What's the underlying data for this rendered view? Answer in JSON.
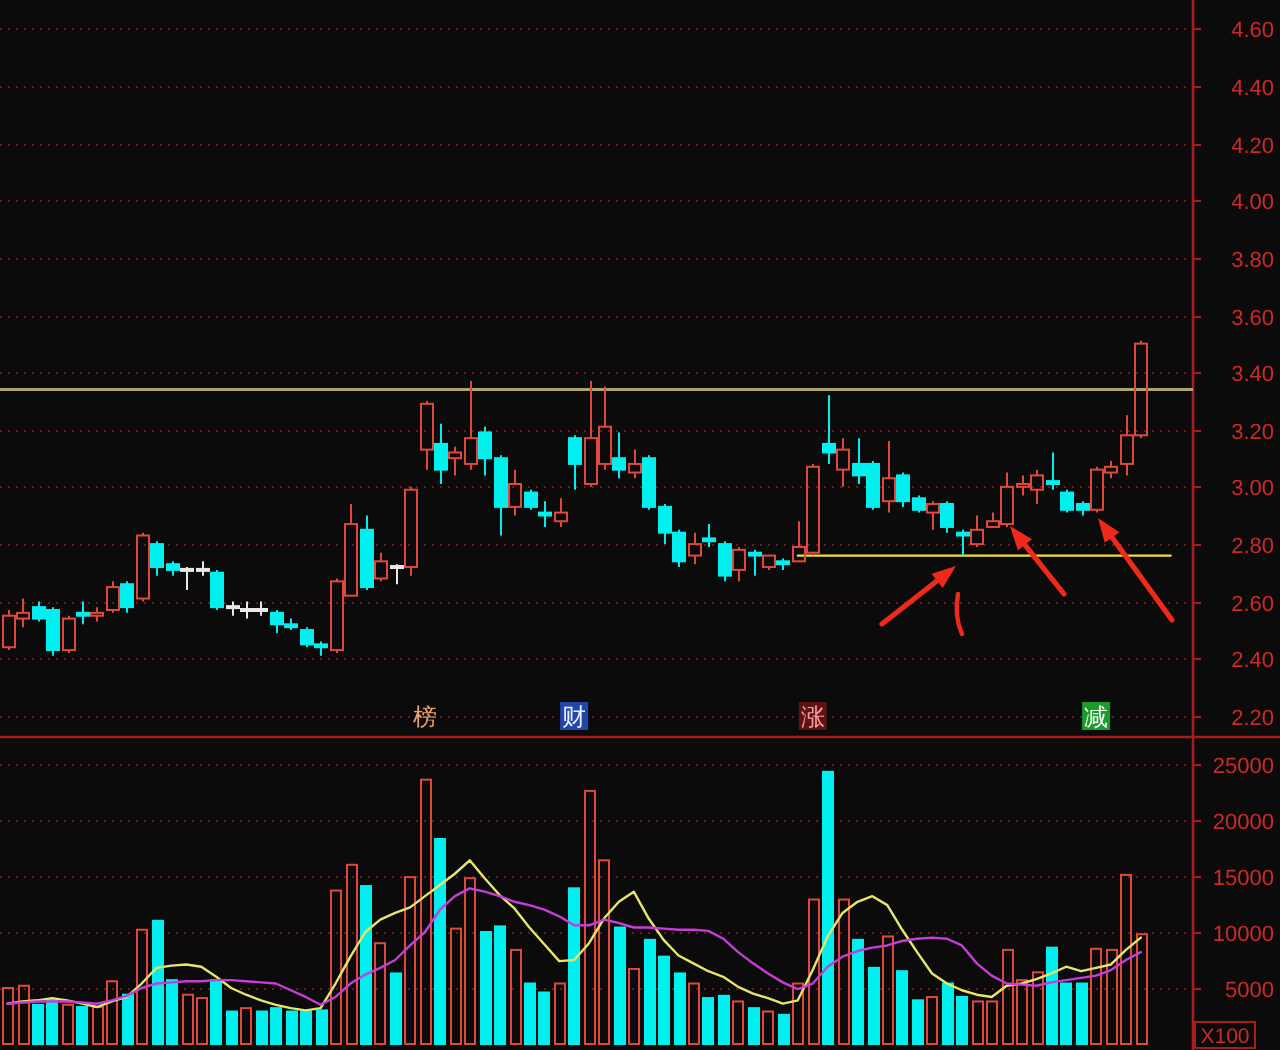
{
  "chart_data": [
    {
      "type": "candlestick",
      "categories": [
        null,
        null,
        null,
        null,
        null,
        null,
        null,
        null,
        null,
        null,
        null,
        null,
        null,
        null,
        null,
        null,
        null,
        null,
        null,
        null,
        null,
        null,
        null,
        null,
        null,
        null,
        null,
        null,
        null,
        null,
        null,
        null,
        null,
        null,
        null,
        null,
        null,
        null,
        null,
        null,
        null,
        null,
        null,
        null,
        null,
        null,
        null,
        null,
        null,
        null,
        null,
        null,
        null,
        null,
        null,
        null,
        null,
        null,
        null,
        null,
        null,
        null,
        null,
        null,
        null,
        null,
        null,
        null,
        null,
        null,
        null,
        null,
        null,
        null,
        null,
        null,
        null,
        null,
        null,
        null
      ],
      "ohlc": [
        [
          2.44,
          2.57,
          2.43,
          2.55
        ],
        [
          2.54,
          2.61,
          2.51,
          2.56
        ],
        [
          2.58,
          2.6,
          2.53,
          2.54
        ],
        [
          2.57,
          2.58,
          2.41,
          2.43
        ],
        [
          2.43,
          2.55,
          2.42,
          2.54
        ],
        [
          2.56,
          2.6,
          2.52,
          2.55
        ],
        [
          2.55,
          2.58,
          2.53,
          2.56
        ],
        [
          2.57,
          2.67,
          2.56,
          2.65
        ],
        [
          2.66,
          2.67,
          2.56,
          2.58
        ],
        [
          2.61,
          2.84,
          2.6,
          2.83
        ],
        [
          2.8,
          2.81,
          2.69,
          2.72
        ],
        [
          2.73,
          2.74,
          2.69,
          2.71
        ],
        [
          2.71,
          2.72,
          2.64,
          2.71
        ],
        [
          2.71,
          2.74,
          2.69,
          2.71
        ],
        [
          2.7,
          2.71,
          2.57,
          2.58
        ],
        [
          2.58,
          2.6,
          2.55,
          2.58
        ],
        [
          2.57,
          2.6,
          2.54,
          2.57
        ],
        [
          2.57,
          2.6,
          2.55,
          2.57
        ],
        [
          2.56,
          2.57,
          2.49,
          2.52
        ],
        [
          2.52,
          2.54,
          2.5,
          2.51
        ],
        [
          2.5,
          2.51,
          2.44,
          2.45
        ],
        [
          2.45,
          2.46,
          2.41,
          2.44
        ],
        [
          2.43,
          2.68,
          2.42,
          2.67
        ],
        [
          2.62,
          2.94,
          2.62,
          2.87
        ],
        [
          2.85,
          2.9,
          2.64,
          2.65
        ],
        [
          2.68,
          2.77,
          2.67,
          2.74
        ],
        [
          2.72,
          2.73,
          2.66,
          2.72
        ],
        [
          2.72,
          3.0,
          2.69,
          2.99
        ],
        [
          3.13,
          3.3,
          3.06,
          3.29
        ],
        [
          3.15,
          3.22,
          3.01,
          3.06
        ],
        [
          3.1,
          3.14,
          3.04,
          3.12
        ],
        [
          3.08,
          3.37,
          3.06,
          3.17
        ],
        [
          3.19,
          3.21,
          3.04,
          3.1
        ],
        [
          3.1,
          3.11,
          2.83,
          2.93
        ],
        [
          2.93,
          3.06,
          2.9,
          3.01
        ],
        [
          2.98,
          2.99,
          2.92,
          2.93
        ],
        [
          2.91,
          2.95,
          2.86,
          2.9
        ],
        [
          2.88,
          2.96,
          2.86,
          2.91
        ],
        [
          3.17,
          3.18,
          2.99,
          3.08
        ],
        [
          3.01,
          3.37,
          3.0,
          3.17
        ],
        [
          3.08,
          3.35,
          3.06,
          3.21
        ],
        [
          3.1,
          3.19,
          3.03,
          3.06
        ],
        [
          3.05,
          3.13,
          3.03,
          3.08
        ],
        [
          3.1,
          3.11,
          2.92,
          2.93
        ],
        [
          2.93,
          2.94,
          2.8,
          2.84
        ],
        [
          2.84,
          2.85,
          2.72,
          2.74
        ],
        [
          2.76,
          2.84,
          2.73,
          2.8
        ],
        [
          2.82,
          2.87,
          2.79,
          2.81
        ],
        [
          2.8,
          2.81,
          2.67,
          2.69
        ],
        [
          2.71,
          2.79,
          2.67,
          2.78
        ],
        [
          2.77,
          2.78,
          2.69,
          2.76
        ],
        [
          2.72,
          2.76,
          2.71,
          2.76
        ],
        [
          2.74,
          2.75,
          2.71,
          2.73
        ],
        [
          2.74,
          2.88,
          2.74,
          2.79
        ],
        [
          2.77,
          3.08,
          2.76,
          3.07
        ],
        [
          3.15,
          3.32,
          3.08,
          3.12
        ],
        [
          3.06,
          3.17,
          3.0,
          3.13
        ],
        [
          3.08,
          3.17,
          3.01,
          3.04
        ],
        [
          3.08,
          3.09,
          2.92,
          2.93
        ],
        [
          2.95,
          3.16,
          2.91,
          3.03
        ],
        [
          3.04,
          3.05,
          2.93,
          2.95
        ],
        [
          2.96,
          2.97,
          2.91,
          2.92
        ],
        [
          2.91,
          2.95,
          2.85,
          2.94
        ],
        [
          2.94,
          2.95,
          2.84,
          2.86
        ],
        [
          2.84,
          2.85,
          2.76,
          2.83
        ],
        [
          2.8,
          2.9,
          2.79,
          2.85
        ],
        [
          2.86,
          2.91,
          2.86,
          2.88
        ],
        [
          2.87,
          3.05,
          2.86,
          3.0
        ],
        [
          3.0,
          3.04,
          2.97,
          3.01
        ],
        [
          2.99,
          3.06,
          2.94,
          3.04
        ],
        [
          3.02,
          3.12,
          2.99,
          3.01
        ],
        [
          2.98,
          2.99,
          2.91,
          2.92
        ],
        [
          2.94,
          2.95,
          2.9,
          2.92
        ],
        [
          2.92,
          3.07,
          2.91,
          3.06
        ],
        [
          3.05,
          3.09,
          3.03,
          3.07
        ],
        [
          3.08,
          3.25,
          3.04,
          3.18
        ],
        [
          3.18,
          3.51,
          3.17,
          3.5
        ],
        null,
        null,
        null
      ],
      "colors": [
        "#e0483c",
        "#e0483c",
        "#00f0f0",
        "#00f0f0",
        "#e0483c",
        "#00f0f0",
        "#e0483c",
        "#e0483c",
        "#00f0f0",
        "#e0483c",
        "#00f0f0",
        "#00f0f0",
        "#e8e8e8",
        "#e8e8e8",
        "#00f0f0",
        "#e8e8e8",
        "#e8e8e8",
        "#e8e8e8",
        "#00f0f0",
        "#00f0f0",
        "#00f0f0",
        "#00f0f0",
        "#e0483c",
        "#e0483c",
        "#00f0f0",
        "#e0483c",
        "#e8e8e8",
        "#e0483c",
        "#e0483c",
        "#00f0f0",
        "#e0483c",
        "#e0483c",
        "#00f0f0",
        "#00f0f0",
        "#e0483c",
        "#00f0f0",
        "#00f0f0",
        "#e0483c",
        "#00f0f0",
        "#e0483c",
        "#e0483c",
        "#00f0f0",
        "#e0483c",
        "#00f0f0",
        "#00f0f0",
        "#00f0f0",
        "#e0483c",
        "#00f0f0",
        "#00f0f0",
        "#e0483c",
        "#00f0f0",
        "#e0483c",
        "#00f0f0",
        "#e0483c",
        "#e0483c",
        "#00f0f0",
        "#e0483c",
        "#00f0f0",
        "#00f0f0",
        "#e0483c",
        "#00f0f0",
        "#00f0f0",
        "#e0483c",
        "#00f0f0",
        "#00f0f0",
        "#e0483c",
        "#e0483c",
        "#e0483c",
        "#e0483c",
        "#e0483c",
        "#00f0f0",
        "#00f0f0",
        "#00f0f0",
        "#e0483c",
        "#e0483c",
        "#e0483c",
        "#e0483c",
        null,
        null,
        null
      ],
      "series": [
        {
          "type": "line",
          "color": "#ece03c",
          "values": [
            null,
            null,
            null,
            null,
            null,
            null,
            null,
            null,
            null,
            null,
            null,
            null,
            null,
            null,
            null,
            null,
            null,
            null,
            null,
            null,
            null,
            null,
            null,
            null,
            null,
            null,
            null,
            null,
            null,
            null,
            null,
            null,
            null,
            null,
            null,
            null,
            null,
            null,
            null,
            null,
            null,
            null,
            null,
            null,
            null,
            null,
            null,
            null,
            null,
            null,
            null,
            null,
            null,
            2.76,
            2.76,
            2.76,
            2.76,
            2.76,
            2.76,
            2.76,
            2.76,
            2.76,
            2.76,
            2.76,
            2.76,
            2.76,
            2.76,
            2.76,
            2.76,
            2.76,
            2.76,
            2.76,
            2.76,
            2.76,
            2.76,
            2.76,
            2.76,
            2.76,
            2.76,
            null
          ]
        }
      ],
      "ylim": [
        2.13,
        4.7
      ],
      "yticks": [
        {
          "value": 2.2,
          "label": "2.20"
        },
        {
          "value": 2.4,
          "label": "2.40"
        },
        {
          "value": 2.6,
          "label": "2.60"
        },
        {
          "value": 2.8,
          "label": "2.80"
        },
        {
          "value": 3,
          "label": "3.00"
        },
        {
          "value": 3.2,
          "label": "3.20"
        },
        {
          "value": 3.4,
          "label": "3.40"
        },
        {
          "value": 3.6,
          "label": "3.60"
        },
        {
          "value": 3.8,
          "label": "3.80"
        },
        {
          "value": 4,
          "label": "4.00"
        },
        {
          "value": 4.2,
          "label": "4.20"
        },
        {
          "value": 4.4,
          "label": "4.40"
        },
        {
          "value": 4.6,
          "label": "4.60"
        }
      ],
      "grid": "y",
      "ref_lines": [
        {
          "axis": "y",
          "value": 3.34,
          "color": "#aca46c"
        }
      ],
      "annotations": [
        "榜",
        "财",
        "涨",
        "减"
      ]
    },
    {
      "type": "bar",
      "categories": [
        null,
        null,
        null,
        null,
        null,
        null,
        null,
        null,
        null,
        null,
        null,
        null,
        null,
        null,
        null,
        null,
        null,
        null,
        null,
        null,
        null,
        null,
        null,
        null,
        null,
        null,
        null,
        null,
        null,
        null,
        null,
        null,
        null,
        null,
        null,
        null,
        null,
        null,
        null,
        null,
        null,
        null,
        null,
        null,
        null,
        null,
        null,
        null,
        null,
        null,
        null,
        null,
        null,
        null,
        null,
        null,
        null,
        null,
        null,
        null,
        null,
        null,
        null,
        null,
        null,
        null,
        null,
        null,
        null,
        null,
        null,
        null,
        null,
        null,
        null,
        null,
        null,
        null,
        null,
        null
      ],
      "series": [
        {
          "values": [
            5000,
            5200,
            3500,
            3900,
            3500,
            3300,
            3300,
            5600,
            4400,
            10200,
            11000,
            5700,
            4400,
            4100,
            5700,
            2900,
            3200,
            2900,
            3200,
            2900,
            2900,
            3000,
            13700,
            16000,
            14100,
            9000,
            6300,
            14900,
            23600,
            18300,
            10300,
            14800,
            10000,
            10500,
            8400,
            5400,
            4600,
            5400,
            13900,
            22600,
            16400,
            10400,
            6700,
            9300,
            7800,
            6300,
            5400,
            4100,
            4300,
            3800,
            3200,
            2900,
            2600,
            5400,
            12900,
            24300,
            12900,
            9300,
            6800,
            9600,
            6500,
            3900,
            4200,
            5400,
            4200,
            3800,
            3800,
            8400,
            5700,
            6400,
            8600,
            5400,
            5400,
            8500,
            8400,
            15100,
            9800,
            null,
            null,
            null
          ],
          "colors": [
            "#e0483c",
            "#e0483c",
            "#00f0f0",
            "#00f0f0",
            "#e0483c",
            "#00f0f0",
            "#e0483c",
            "#e0483c",
            "#00f0f0",
            "#e0483c",
            "#00f0f0",
            "#00f0f0",
            "#e0483c",
            "#e0483c",
            "#00f0f0",
            "#00f0f0",
            "#e0483c",
            "#00f0f0",
            "#00f0f0",
            "#00f0f0",
            "#00f0f0",
            "#00f0f0",
            "#e0483c",
            "#e0483c",
            "#00f0f0",
            "#e0483c",
            "#00f0f0",
            "#e0483c",
            "#e0483c",
            "#00f0f0",
            "#e0483c",
            "#e0483c",
            "#00f0f0",
            "#00f0f0",
            "#e0483c",
            "#00f0f0",
            "#00f0f0",
            "#e0483c",
            "#00f0f0",
            "#e0483c",
            "#e0483c",
            "#00f0f0",
            "#e0483c",
            "#00f0f0",
            "#00f0f0",
            "#00f0f0",
            "#e0483c",
            "#00f0f0",
            "#00f0f0",
            "#e0483c",
            "#00f0f0",
            "#e0483c",
            "#00f0f0",
            "#e0483c",
            "#e0483c",
            "#00f0f0",
            "#e0483c",
            "#00f0f0",
            "#00f0f0",
            "#e0483c",
            "#00f0f0",
            "#00f0f0",
            "#e0483c",
            "#00f0f0",
            "#00f0f0",
            "#e0483c",
            "#e0483c",
            "#e0483c",
            "#e0483c",
            "#e0483c",
            "#00f0f0",
            "#00f0f0",
            "#00f0f0",
            "#e0483c",
            "#e0483c",
            "#e0483c",
            "#e0483c",
            null,
            null,
            null
          ]
        },
        {
          "type": "line",
          "color": "#e6e66a",
          "values": [
            3600,
            3800,
            3900,
            4100,
            3900,
            3600,
            3300,
            3800,
            4200,
            5400,
            6800,
            7000,
            7100,
            6900,
            6000,
            5000,
            4400,
            3900,
            3500,
            3200,
            3000,
            3200,
            5400,
            7800,
            10000,
            11100,
            11700,
            12200,
            13200,
            14200,
            15200,
            16400,
            14800,
            13300,
            12100,
            10400,
            8900,
            7400,
            7500,
            9000,
            11200,
            12700,
            13600,
            11200,
            9300,
            7900,
            7200,
            6500,
            6000,
            5100,
            4500,
            4100,
            3600,
            3900,
            6600,
            9600,
            11700,
            12700,
            13200,
            12400,
            10200,
            8200,
            6300,
            5400,
            4800,
            4400,
            4200,
            5200,
            5400,
            5800,
            6300,
            6900,
            6500,
            6800,
            7100,
            8400,
            9500,
            null,
            null,
            null
          ]
        },
        {
          "type": "line",
          "color": "#c83cd8",
          "values": [
            3600,
            3700,
            3800,
            3800,
            3800,
            3700,
            3600,
            3900,
            4300,
            5000,
            5400,
            5500,
            5600,
            5600,
            5700,
            5700,
            5600,
            5500,
            5400,
            4800,
            4200,
            3500,
            4200,
            5400,
            6200,
            6800,
            7500,
            8800,
            10000,
            12000,
            13200,
            13900,
            13600,
            13200,
            12700,
            12400,
            12000,
            11400,
            10600,
            10600,
            11100,
            10800,
            10400,
            10400,
            10300,
            10200,
            10200,
            10100,
            9400,
            8200,
            7200,
            6300,
            5500,
            4900,
            5400,
            6900,
            7800,
            8300,
            8600,
            8800,
            9200,
            9400,
            9500,
            9400,
            8800,
            7200,
            6100,
            5400,
            5300,
            5200,
            5500,
            5700,
            5900,
            6100,
            6600,
            7500,
            8200,
            null,
            null,
            null
          ]
        }
      ],
      "ylim": [
        0,
        27500
      ],
      "yticks": [
        5000,
        10000,
        15000,
        20000,
        25000
      ],
      "ylabel": "X100",
      "grid": "y"
    }
  ]
}
